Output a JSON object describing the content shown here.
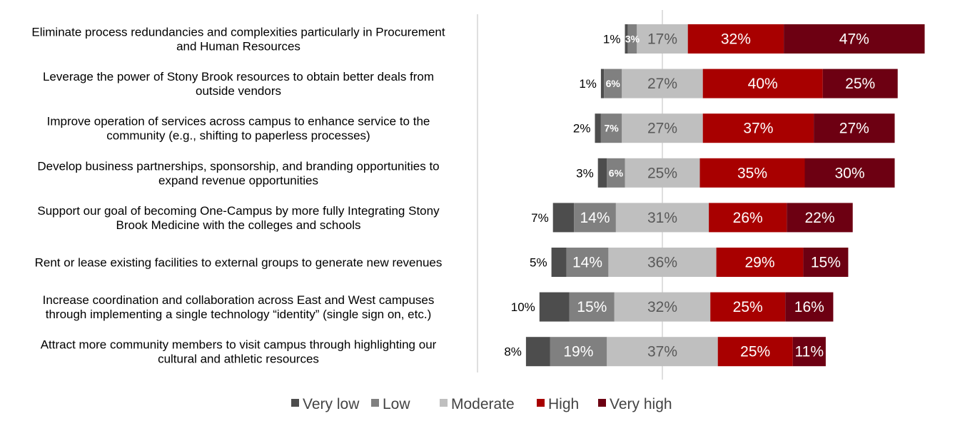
{
  "chart_data": {
    "type": "bar",
    "orientation": "horizontal",
    "stacked": "diverging",
    "categories": [
      "Eliminate process redundancies and complexities particularly in Procurement and Human Resources",
      "Leverage the power of Stony Brook resources to obtain better deals from outside vendors",
      "Improve operation of services across campus to enhance service to the community (e.g., shifting to paperless processes)",
      "Develop business partnerships, sponsorship, and branding opportunities to expand revenue opportunities",
      "Support our goal of becoming One-Campus by more fully Integrating Stony Brook Medicine with the colleges and schools",
      "Rent or lease existing facilities to external groups to generate new revenues",
      "Increase coordination and collaboration across East and West campuses through implementing a single technology “identity” (single sign on, etc.)",
      "Attract more community members to visit  campus through highlighting our cultural and athletic resources"
    ],
    "category_lines": [
      [
        "Eliminate process redundancies and complexities particularly in Procurement",
        "and Human Resources"
      ],
      [
        "Leverage the power of Stony Brook resources to obtain better deals from",
        "outside vendors"
      ],
      [
        "Improve operation of services across campus to enhance service to the",
        "community (e.g., shifting to paperless processes)"
      ],
      [
        "Develop business partnerships, sponsorship, and branding opportunities to",
        "expand revenue opportunities"
      ],
      [
        "Support our goal of becoming One-Campus by more fully Integrating Stony",
        "Brook Medicine with the colleges and schools"
      ],
      [
        "Rent or lease existing facilities to external groups to generate new revenues"
      ],
      [
        "Increase coordination and collaboration across East and West campuses",
        "through implementing a single technology “identity” (single sign on, etc.)"
      ],
      [
        "Attract more community members to visit  campus through highlighting our",
        "cultural and athletic resources"
      ]
    ],
    "series": [
      {
        "name": "Very low",
        "color": "#4d4d4d",
        "values": [
          1,
          1,
          2,
          3,
          7,
          5,
          10,
          8
        ],
        "labels": [
          "1%",
          "1%",
          "2%",
          "3%",
          "7%",
          "5%",
          "10%",
          "8%"
        ]
      },
      {
        "name": "Low",
        "color": "#808080",
        "values": [
          3,
          6,
          7,
          6,
          14,
          14,
          15,
          19
        ],
        "labels": [
          "3%",
          "6%",
          "7%",
          "6%",
          "14%",
          "14%",
          "15%",
          "19%"
        ]
      },
      {
        "name": "Moderate",
        "color": "#bfbfbf",
        "values": [
          17,
          27,
          27,
          25,
          31,
          36,
          32,
          37
        ],
        "labels": [
          "17%",
          "27%",
          "27%",
          "25%",
          "31%",
          "36%",
          "32%",
          "37%"
        ]
      },
      {
        "name": "High",
        "color": "#a80000",
        "values": [
          32,
          40,
          37,
          35,
          26,
          29,
          25,
          25
        ],
        "labels": [
          "32%",
          "40%",
          "37%",
          "35%",
          "26%",
          "29%",
          "25%",
          "25%"
        ]
      },
      {
        "name": "Very high",
        "color": "#6d0012",
        "values": [
          47,
          25,
          27,
          30,
          22,
          15,
          16,
          11
        ],
        "labels": [
          "47%",
          "25%",
          "27%",
          "30%",
          "22%",
          "15%",
          "16%",
          "11%"
        ]
      }
    ],
    "center": "middle of Moderate",
    "legend": "bottom",
    "grid": false
  }
}
